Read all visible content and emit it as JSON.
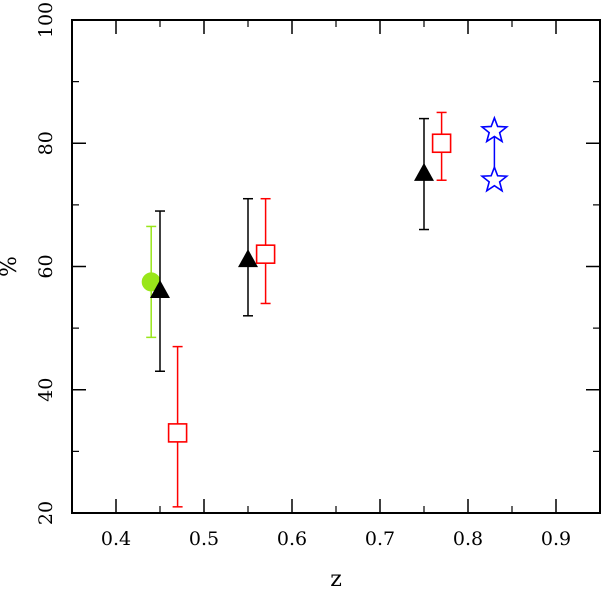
{
  "chart_data": {
    "type": "scatter",
    "title": "",
    "xlabel": "z",
    "ylabel": "%",
    "xlim": [
      0.35,
      0.95
    ],
    "ylim": [
      20,
      100
    ],
    "x_ticks": [
      0.4,
      0.5,
      0.6,
      0.7,
      0.8,
      0.9
    ],
    "x_tick_labels": [
      "0.4",
      "0.5",
      "0.6",
      "0.7",
      "0.8",
      "0.9"
    ],
    "y_ticks": [
      20,
      40,
      60,
      80,
      100
    ],
    "y_tick_labels": [
      "20",
      "40",
      "60",
      "80",
      "100"
    ],
    "grid": false,
    "legend": "none",
    "series": [
      {
        "marker": "filled-circle",
        "color": "#99e61a",
        "points": [
          {
            "x": 0.44,
            "y": 57.5,
            "y_low": 48.5,
            "y_high": 66.5
          }
        ]
      },
      {
        "marker": "filled-triangle",
        "color": "#000000",
        "points": [
          {
            "x": 0.45,
            "y": 56,
            "y_low": 43,
            "y_high": 69
          },
          {
            "x": 0.55,
            "y": 61,
            "y_low": 52,
            "y_high": 71
          },
          {
            "x": 0.75,
            "y": 75,
            "y_low": 66,
            "y_high": 84
          }
        ]
      },
      {
        "marker": "open-square",
        "color": "#ff0000",
        "points": [
          {
            "x": 0.47,
            "y": 33,
            "y_low": 21,
            "y_high": 47
          },
          {
            "x": 0.57,
            "y": 62,
            "y_low": 54,
            "y_high": 71
          },
          {
            "x": 0.77,
            "y": 80,
            "y_low": 74,
            "y_high": 85
          }
        ]
      },
      {
        "marker": "open-star",
        "color": "#0000ff",
        "points": [
          {
            "x": 0.83,
            "y": 82
          },
          {
            "x": 0.83,
            "y": 74
          }
        ],
        "connected": true
      }
    ]
  }
}
